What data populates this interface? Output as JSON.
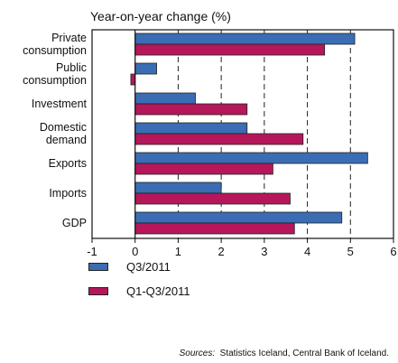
{
  "chart_data": {
    "type": "bar",
    "orientation": "horizontal",
    "title": "Year-on-year change (%)",
    "categories": [
      [
        "Private",
        "consumption"
      ],
      [
        "Public",
        "consumption"
      ],
      [
        "Investment"
      ],
      [
        "Domestic",
        "demand"
      ],
      [
        "Exports"
      ],
      [
        "Imports"
      ],
      [
        "GDP"
      ]
    ],
    "series": [
      {
        "name": "Q3/2011",
        "color": "#3a6db3",
        "values": [
          5.1,
          0.5,
          1.4,
          2.6,
          5.4,
          2.0,
          4.8
        ]
      },
      {
        "name": "Q1-Q3/2011",
        "color": "#b5175a",
        "values": [
          4.4,
          -0.1,
          2.6,
          3.9,
          3.2,
          3.6,
          3.7
        ]
      }
    ],
    "xlim": [
      -1,
      6
    ],
    "xticks": [
      -1,
      0,
      1,
      2,
      3,
      4,
      5,
      6
    ],
    "grid": "vertical-dashed",
    "legend": "bottom-left"
  },
  "source": {
    "label": "Sources:",
    "text": "Statistics Iceland, Central Bank of Iceland."
  }
}
